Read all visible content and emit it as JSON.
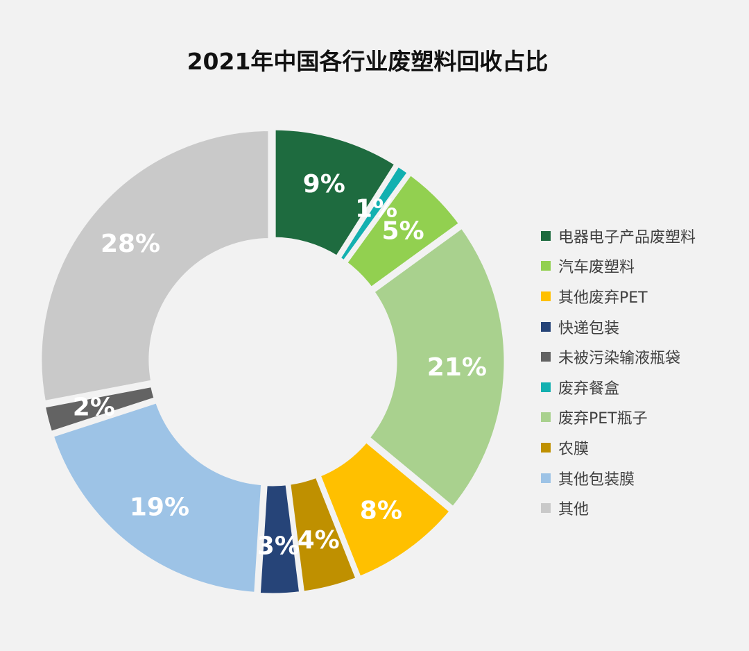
{
  "chart_data": {
    "type": "pie",
    "style": "donut",
    "title": "2021年中国各行业废塑料回收占比",
    "legend_position": "right",
    "slices": [
      {
        "label": "电器电子产品废塑料",
        "value": 9,
        "display": "9%",
        "color": "#1e6b3f"
      },
      {
        "label": "废弃餐盒",
        "value": 1,
        "display": "1%",
        "color": "#13b0b0"
      },
      {
        "label": "汽车废塑料",
        "value": 5,
        "display": "5%",
        "color": "#92d050"
      },
      {
        "label": "废弃PET瓶子",
        "value": 21,
        "display": "21%",
        "color": "#a9d18e"
      },
      {
        "label": "其他废弃PET",
        "value": 8,
        "display": "8%",
        "color": "#ffc000"
      },
      {
        "label": "农膜",
        "value": 4,
        "display": "4%",
        "color": "#bf9000"
      },
      {
        "label": "快递包装",
        "value": 3,
        "display": "3%",
        "color": "#264478"
      },
      {
        "label": "其他包装膜",
        "value": 19,
        "display": "19%",
        "color": "#9dc3e6"
      },
      {
        "label": "未被污染输液瓶袋",
        "value": 2,
        "display": "2%",
        "color": "#636363"
      },
      {
        "label": "其他",
        "value": 28,
        "display": "28%",
        "color": "#c9c9c9"
      }
    ],
    "legend": [
      {
        "label": "电器电子产品废塑料",
        "color": "#1e6b3f"
      },
      {
        "label": "汽车废塑料",
        "color": "#92d050"
      },
      {
        "label": "其他废弃PET",
        "color": "#ffc000"
      },
      {
        "label": "快递包装",
        "color": "#264478"
      },
      {
        "label": "未被污染输液瓶袋",
        "color": "#636363"
      },
      {
        "label": "废弃餐盒",
        "color": "#13b0b0"
      },
      {
        "label": "废弃PET瓶子",
        "color": "#a9d18e"
      },
      {
        "label": "农膜",
        "color": "#bf9000"
      },
      {
        "label": "其他包装膜",
        "color": "#9dc3e6"
      },
      {
        "label": "其他",
        "color": "#c9c9c9"
      }
    ]
  }
}
